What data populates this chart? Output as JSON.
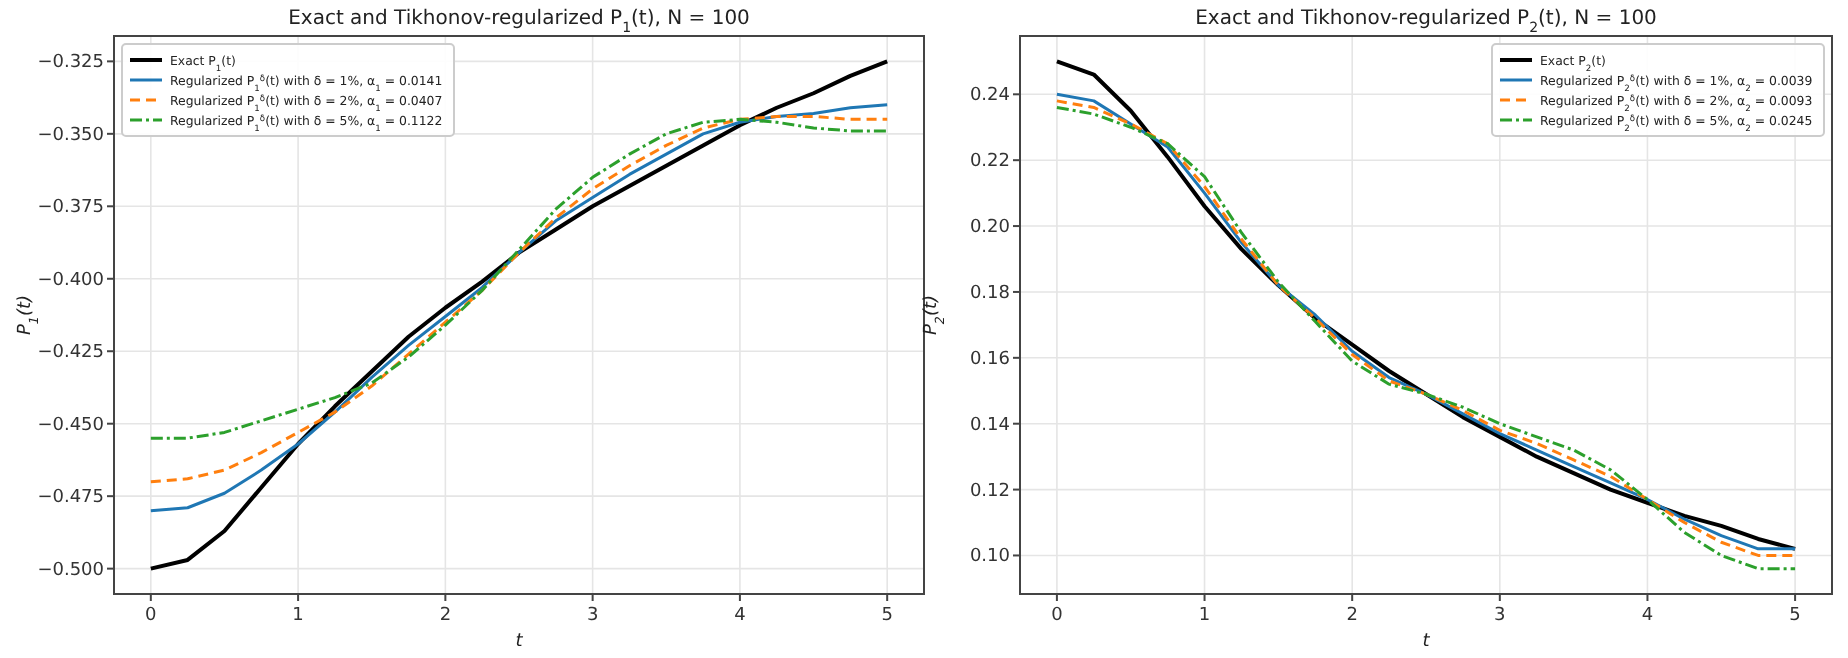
{
  "chart_data": [
    {
      "type": "line",
      "title": "Exact and Tikhonov-regularized P$_{1}$(t), N = 100",
      "xlabel": "t",
      "ylabel": "P$_{1}$(t)",
      "x": [
        0,
        0.25,
        0.5,
        0.75,
        1,
        1.25,
        1.5,
        1.75,
        2,
        2.25,
        2.5,
        2.75,
        3,
        3.25,
        3.5,
        3.75,
        4,
        4.25,
        4.5,
        4.75,
        5
      ],
      "xlim": [
        -0.25,
        5.25
      ],
      "ylim": [
        -0.50875,
        -0.31625
      ],
      "xticks": [
        0,
        1,
        2,
        3,
        4,
        5
      ],
      "yticks": [
        {
          "value": -0.5,
          "label": "−0.500"
        },
        {
          "value": -0.475,
          "label": "−0.475"
        },
        {
          "value": -0.45,
          "label": "−0.450"
        },
        {
          "value": -0.425,
          "label": "−0.425"
        },
        {
          "value": -0.4,
          "label": "−0.400"
        },
        {
          "value": -0.375,
          "label": "−0.375"
        },
        {
          "value": -0.35,
          "label": "−0.350"
        },
        {
          "value": -0.325,
          "label": "−0.325"
        }
      ],
      "grid": true,
      "legend": "top left",
      "marker": "none",
      "series": [
        {
          "name": "Exact P$_{1}$(t)",
          "color": "#000000",
          "line_style": "solid",
          "values": [
            -0.5,
            -0.497,
            -0.487,
            -0.472,
            -0.457,
            -0.444,
            -0.432,
            -0.42,
            -0.41,
            -0.401,
            -0.391,
            -0.383,
            -0.375,
            -0.368,
            -0.361,
            -0.354,
            -0.347,
            -0.341,
            -0.336,
            -0.33,
            -0.325
          ]
        },
        {
          "name": "Regularized P$_{1}$$^{δ}$(t) with δ = 1%, α$_{1}$ = 0.0141",
          "color": "#1f77b4",
          "line_style": "solid",
          "values": [
            -0.48,
            -0.479,
            -0.474,
            -0.466,
            -0.457,
            -0.446,
            -0.434,
            -0.423,
            -0.413,
            -0.403,
            -0.391,
            -0.38,
            -0.372,
            -0.364,
            -0.357,
            -0.35,
            -0.346,
            -0.344,
            -0.343,
            -0.341,
            -0.34
          ]
        },
        {
          "name": "Regularized P$_{1}$$^{δ}$(t) with δ = 2%, α$_{1}$ = 0.0407",
          "color": "#ff7f0e",
          "line_style": "dashed",
          "values": [
            -0.47,
            -0.469,
            -0.466,
            -0.46,
            -0.453,
            -0.446,
            -0.437,
            -0.426,
            -0.415,
            -0.404,
            -0.391,
            -0.379,
            -0.369,
            -0.361,
            -0.354,
            -0.348,
            -0.345,
            -0.344,
            -0.344,
            -0.345,
            -0.345
          ]
        },
        {
          "name": "Regularized P$_{1}$$^{δ}$(t) with δ = 5%, α$_{1}$ = 0.1122",
          "color": "#2ca02c",
          "line_style": "dashdot",
          "values": [
            -0.455,
            -0.455,
            -0.453,
            -0.449,
            -0.445,
            -0.441,
            -0.436,
            -0.427,
            -0.416,
            -0.404,
            -0.39,
            -0.376,
            -0.365,
            -0.357,
            -0.35,
            -0.346,
            -0.345,
            -0.346,
            -0.348,
            -0.349,
            -0.349
          ]
        }
      ]
    },
    {
      "type": "line",
      "title": "Exact and Tikhonov-regularized P$_{2}$(t), N = 100",
      "xlabel": "t",
      "ylabel": "P$_{2}$(t)",
      "x": [
        0,
        0.25,
        0.5,
        0.75,
        1,
        1.25,
        1.5,
        1.75,
        2,
        2.25,
        2.5,
        2.75,
        3,
        3.25,
        3.5,
        3.75,
        4,
        4.25,
        4.5,
        4.75,
        5
      ],
      "xlim": [
        -0.25,
        5.25
      ],
      "ylim": [
        0.0883,
        0.2577
      ],
      "xticks": [
        0,
        1,
        2,
        3,
        4,
        5
      ],
      "yticks": [
        {
          "value": 0.1,
          "label": "0.10"
        },
        {
          "value": 0.12,
          "label": "0.12"
        },
        {
          "value": 0.14,
          "label": "0.14"
        },
        {
          "value": 0.16,
          "label": "0.16"
        },
        {
          "value": 0.18,
          "label": "0.18"
        },
        {
          "value": 0.2,
          "label": "0.20"
        },
        {
          "value": 0.22,
          "label": "0.22"
        },
        {
          "value": 0.24,
          "label": "0.24"
        }
      ],
      "grid": true,
      "legend": "top right",
      "marker": "none",
      "series": [
        {
          "name": "Exact P$_{2}$(t)",
          "color": "#000000",
          "line_style": "solid",
          "values": [
            0.25,
            0.246,
            0.235,
            0.221,
            0.206,
            0.193,
            0.182,
            0.172,
            0.164,
            0.156,
            0.149,
            0.142,
            0.136,
            0.13,
            0.125,
            0.12,
            0.116,
            0.112,
            0.109,
            0.105,
            0.102
          ]
        },
        {
          "name": "Regularized P$_{2}$$^{δ}$(t) with δ = 1%, α$_{2}$ = 0.0039",
          "color": "#1f77b4",
          "line_style": "solid",
          "values": [
            0.24,
            0.238,
            0.231,
            0.224,
            0.21,
            0.195,
            0.182,
            0.173,
            0.162,
            0.154,
            0.149,
            0.143,
            0.137,
            0.132,
            0.127,
            0.122,
            0.117,
            0.111,
            0.106,
            0.102,
            0.102
          ]
        },
        {
          "name": "Regularized P$_{2}$$^{δ}$(t) with δ = 2%, α$_{2}$ = 0.0093",
          "color": "#ff7f0e",
          "line_style": "dashed",
          "values": [
            0.238,
            0.236,
            0.231,
            0.225,
            0.212,
            0.196,
            0.182,
            0.172,
            0.161,
            0.153,
            0.149,
            0.144,
            0.138,
            0.134,
            0.129,
            0.124,
            0.117,
            0.11,
            0.104,
            0.1,
            0.1
          ]
        },
        {
          "name": "Regularized P$_{2}$$^{δ}$(t) with δ = 5%, α$_{2}$ = 0.0245",
          "color": "#2ca02c",
          "line_style": "dashdot",
          "values": [
            0.236,
            0.234,
            0.23,
            0.225,
            0.215,
            0.198,
            0.183,
            0.171,
            0.159,
            0.152,
            0.149,
            0.145,
            0.14,
            0.136,
            0.132,
            0.126,
            0.117,
            0.107,
            0.1,
            0.096,
            0.096
          ]
        }
      ]
    }
  ]
}
